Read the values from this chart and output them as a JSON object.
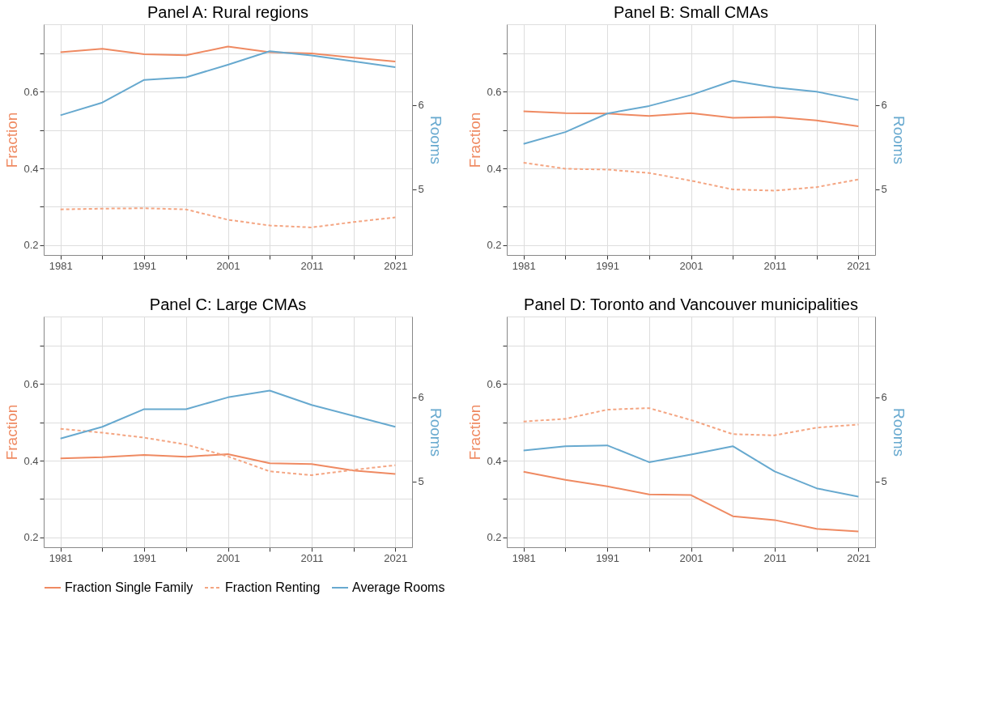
{
  "chart_data": [
    {
      "type": "line",
      "title": "Panel A: Rural regions",
      "ylabel": "Fraction",
      "y2label": "Rooms",
      "legend": "bottom",
      "grid": true,
      "x": [
        1981,
        1986,
        1991,
        1996,
        2001,
        2006,
        2011,
        2016,
        2021
      ],
      "xlim": [
        1979,
        2023
      ],
      "xticks": [
        1981,
        {
          "value": 1986,
          "label": null
        },
        1991,
        {
          "value": 1996,
          "label": null
        },
        2001,
        {
          "value": 2006,
          "label": null
        },
        2011,
        {
          "value": 2016,
          "label": null
        },
        2021
      ],
      "ylim": [
        0.174,
        0.776
      ],
      "yticks": [
        0.2,
        {
          "value": 0.3,
          "label": null
        },
        0.4,
        {
          "value": 0.5,
          "label": null
        },
        0.6,
        {
          "value": 0.7,
          "label": null
        }
      ],
      "y2lim": [
        4.22,
        6.96
      ],
      "y2ticks": [
        5,
        6
      ],
      "series": [
        {
          "name": "Fraction Single Family",
          "color": "#ef8a62",
          "line_style": "solid",
          "values": [
            0.703,
            0.712,
            0.698,
            0.695,
            0.718,
            0.703,
            0.7,
            0.689,
            0.679
          ]
        },
        {
          "name": "Fraction Renting",
          "color": "#f4a582",
          "line_style": "dashed",
          "values": [
            0.293,
            0.295,
            0.296,
            0.293,
            0.266,
            0.251,
            0.246,
            0.26,
            0.272
          ]
        },
        {
          "name": "Average Rooms",
          "color": "#67a9cf",
          "line_style": "solid",
          "axis": "y2",
          "values": [
            5.88,
            6.03,
            6.3,
            6.33,
            6.48,
            6.64,
            6.59,
            6.52,
            6.45
          ]
        }
      ]
    },
    {
      "type": "line",
      "title": "Panel B: Small CMAs",
      "ylabel": "Fraction",
      "y2label": "Rooms",
      "legend": "bottom",
      "grid": true,
      "x": [
        1981,
        1986,
        1991,
        1996,
        2001,
        2006,
        2011,
        2016,
        2021
      ],
      "xlim": [
        1979,
        2023
      ],
      "xticks": [
        1981,
        {
          "value": 1986,
          "label": null
        },
        1991,
        {
          "value": 1996,
          "label": null
        },
        2001,
        {
          "value": 2006,
          "label": null
        },
        2011,
        {
          "value": 2016,
          "label": null
        },
        2021
      ],
      "ylim": [
        0.174,
        0.776
      ],
      "yticks": [
        0.2,
        {
          "value": 0.3,
          "label": null
        },
        0.4,
        {
          "value": 0.5,
          "label": null
        },
        0.6,
        {
          "value": 0.7,
          "label": null
        }
      ],
      "y2lim": [
        4.22,
        6.96
      ],
      "y2ticks": [
        5,
        6
      ],
      "series": [
        {
          "name": "Fraction Single Family",
          "color": "#ef8a62",
          "line_style": "solid",
          "values": [
            0.549,
            0.544,
            0.543,
            0.537,
            0.544,
            0.532,
            0.534,
            0.525,
            0.51
          ]
        },
        {
          "name": "Fraction Renting",
          "color": "#f4a582",
          "line_style": "dashed",
          "values": [
            0.415,
            0.399,
            0.397,
            0.388,
            0.368,
            0.345,
            0.342,
            0.351,
            0.371
          ]
        },
        {
          "name": "Average Rooms",
          "color": "#67a9cf",
          "line_style": "solid",
          "axis": "y2",
          "values": [
            5.54,
            5.68,
            5.9,
            5.99,
            6.12,
            6.29,
            6.21,
            6.16,
            6.06
          ]
        }
      ]
    },
    {
      "type": "line",
      "title": "Panel C: Large CMAs",
      "ylabel": "Fraction",
      "y2label": "Rooms",
      "legend": "bottom",
      "grid": true,
      "x": [
        1981,
        1986,
        1991,
        1996,
        2001,
        2006,
        2011,
        2016,
        2021
      ],
      "xlim": [
        1979,
        2023
      ],
      "xticks": [
        1981,
        {
          "value": 1986,
          "label": null
        },
        1991,
        {
          "value": 1996,
          "label": null
        },
        2001,
        {
          "value": 2006,
          "label": null
        },
        2011,
        {
          "value": 2016,
          "label": null
        },
        2021
      ],
      "ylim": [
        0.174,
        0.776
      ],
      "yticks": [
        0.2,
        {
          "value": 0.3,
          "label": null
        },
        0.4,
        {
          "value": 0.5,
          "label": null
        },
        0.6,
        {
          "value": 0.7,
          "label": null
        }
      ],
      "y2lim": [
        4.22,
        6.96
      ],
      "y2ticks": [
        5,
        6
      ],
      "series": [
        {
          "name": "Fraction Single Family",
          "color": "#ef8a62",
          "line_style": "solid",
          "values": [
            0.406,
            0.409,
            0.415,
            0.41,
            0.417,
            0.393,
            0.391,
            0.374,
            0.365
          ]
        },
        {
          "name": "Fraction Renting",
          "color": "#f4a582",
          "line_style": "dashed",
          "values": [
            0.483,
            0.473,
            0.46,
            0.442,
            0.411,
            0.372,
            0.362,
            0.376,
            0.388
          ]
        },
        {
          "name": "Average Rooms",
          "color": "#67a9cf",
          "line_style": "solid",
          "axis": "y2",
          "values": [
            5.51,
            5.65,
            5.86,
            5.86,
            6.0,
            6.08,
            5.91,
            5.78,
            5.65
          ]
        }
      ]
    },
    {
      "type": "line",
      "title": "Panel D: Toronto and Vancouver municipalities",
      "ylabel": "Fraction",
      "y2label": "Rooms",
      "legend": "bottom",
      "grid": true,
      "x": [
        1981,
        1986,
        1991,
        1996,
        2001,
        2006,
        2011,
        2016,
        2021
      ],
      "xlim": [
        1979,
        2023
      ],
      "xticks": [
        1981,
        {
          "value": 1986,
          "label": null
        },
        1991,
        {
          "value": 1996,
          "label": null
        },
        2001,
        {
          "value": 2006,
          "label": null
        },
        2011,
        {
          "value": 2016,
          "label": null
        },
        2021
      ],
      "ylim": [
        0.174,
        0.776
      ],
      "yticks": [
        0.2,
        {
          "value": 0.3,
          "label": null
        },
        0.4,
        {
          "value": 0.5,
          "label": null
        },
        0.6,
        {
          "value": 0.7,
          "label": null
        }
      ],
      "y2lim": [
        4.22,
        6.96
      ],
      "y2ticks": [
        5,
        6
      ],
      "series": [
        {
          "name": "Fraction Single Family",
          "color": "#ef8a62",
          "line_style": "solid",
          "values": [
            0.371,
            0.35,
            0.333,
            0.312,
            0.31,
            0.255,
            0.245,
            0.222,
            0.215
          ]
        },
        {
          "name": "Fraction Renting",
          "color": "#f4a582",
          "line_style": "dashed",
          "values": [
            0.502,
            0.509,
            0.533,
            0.537,
            0.506,
            0.469,
            0.466,
            0.486,
            0.494
          ]
        },
        {
          "name": "Average Rooms",
          "color": "#67a9cf",
          "line_style": "solid",
          "axis": "y2",
          "values": [
            5.37,
            5.42,
            5.43,
            5.23,
            5.32,
            5.42,
            5.12,
            4.92,
            4.82
          ]
        }
      ]
    }
  ]
}
